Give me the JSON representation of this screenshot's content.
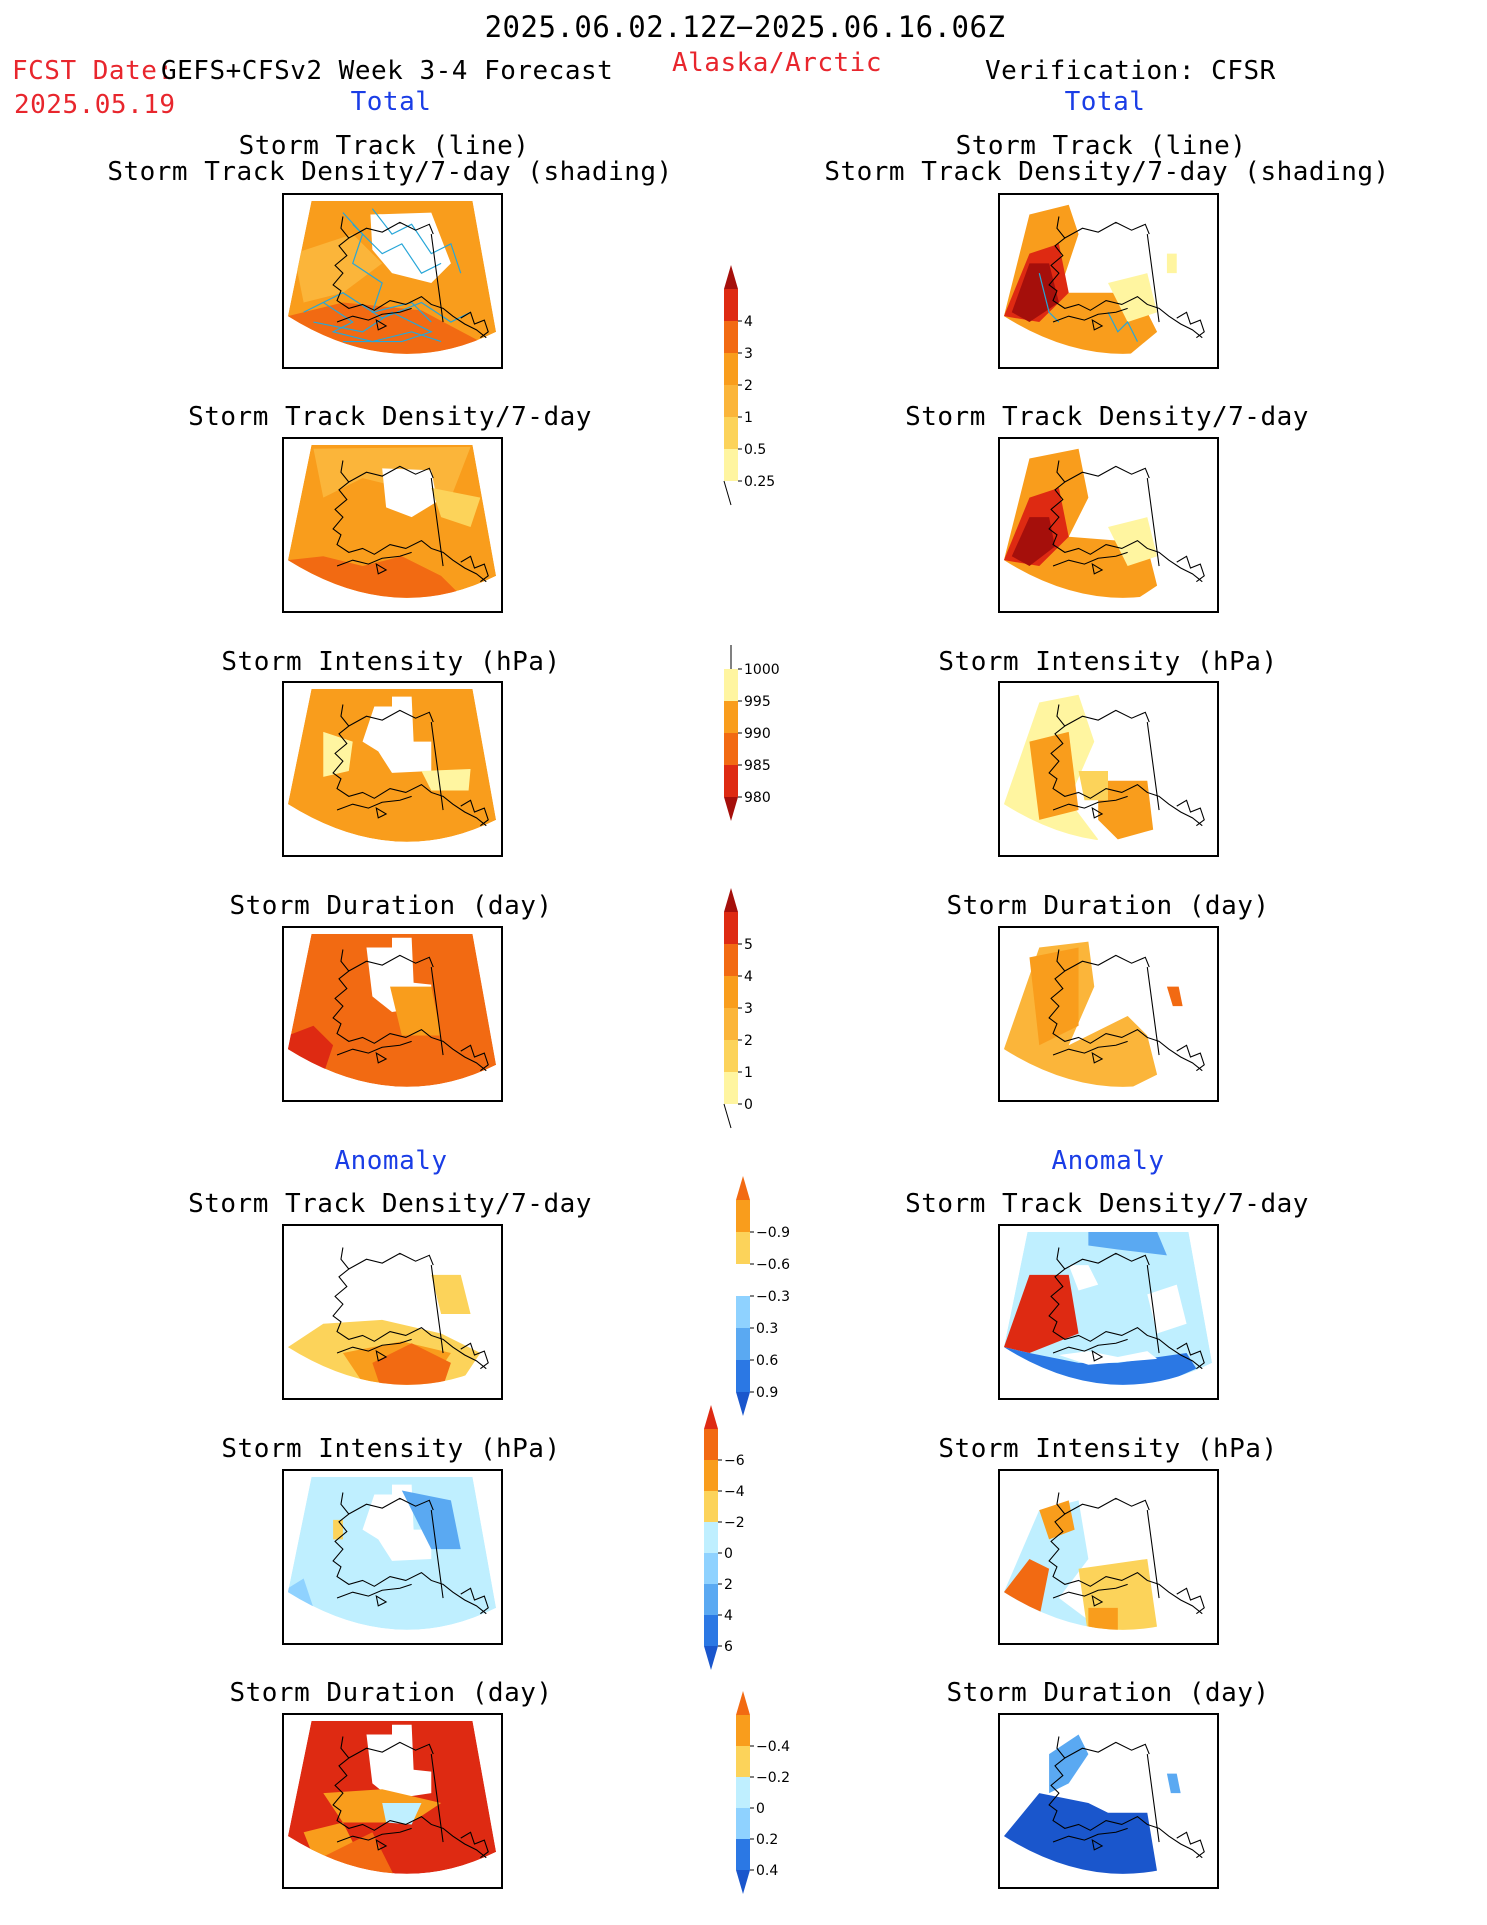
{
  "header": {
    "period": "2025.06.02.12Z−2025.06.16.06Z",
    "fcst_label": "FCST Date:",
    "fcst_model": "GEFS+CFSv2 Week 3-4 Forecast",
    "fcst_date": "2025.05.19",
    "region": "Alaska/Arctic",
    "verification": "Verification: CFSR"
  },
  "sections": {
    "total": "Total",
    "anomaly": "Anomaly"
  },
  "titles": {
    "track_line": "Storm Track (line)",
    "track_density_shading": "Storm Track Density/7-day (shading)",
    "track_density": "Storm Track Density/7-day",
    "intensity": "Storm Intensity (hPa)",
    "duration": "Storm Duration (day)"
  },
  "colorbars": {
    "density_total": [
      "0.25",
      "0.5",
      "1",
      "2",
      "3",
      "4"
    ],
    "intensity_total": [
      "1000",
      "995",
      "990",
      "985",
      "980"
    ],
    "duration_total": [
      "0",
      "1",
      "2",
      "3",
      "4",
      "5"
    ],
    "density_anom": [
      "0.9",
      "0.6",
      "0.3",
      "−0.3",
      "−0.6",
      "−0.9"
    ],
    "intensity_anom": [
      "6",
      "4",
      "2",
      "0",
      "−2",
      "−4",
      "−6"
    ],
    "duration_anom": [
      "0.4",
      "0.2",
      "0",
      "−0.2",
      "−0.4"
    ]
  },
  "colors": {
    "lightyellow": "#fff5a0",
    "yellow": "#fcd35a",
    "lightorange": "#fbb53a",
    "orange": "#f99d1c",
    "darkorange": "#f26a12",
    "red": "#de2a12",
    "darkred": "#a50f0b",
    "paleblue": "#bfefff",
    "lightblue": "#8fd2ff",
    "midblue": "#5aa9f2",
    "blue": "#2b78e4",
    "darkblue": "#1a56cc",
    "track": "#27a6d8"
  }
}
